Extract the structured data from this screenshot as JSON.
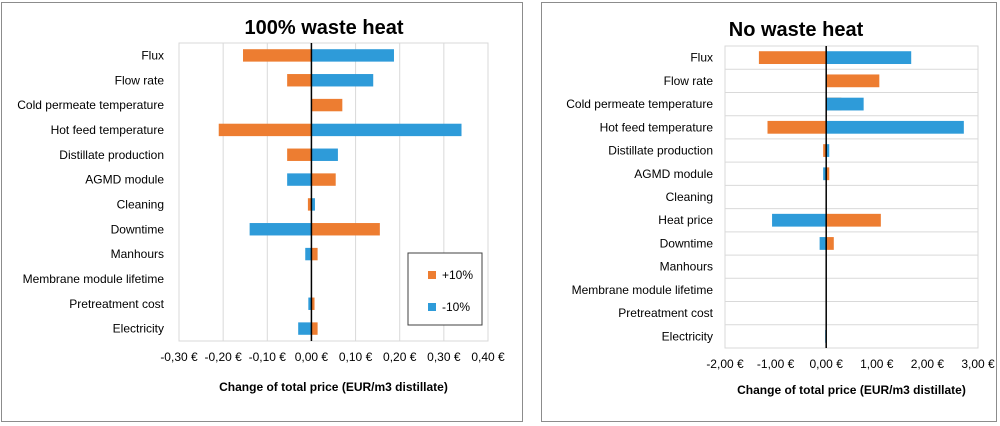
{
  "colors": {
    "plus10": "#ed7d31",
    "minus10": "#2e9bd9",
    "grid": "#d9d9d9",
    "axis": "#000000"
  },
  "chart_data": [
    {
      "type": "bar",
      "orientation": "horizontal",
      "title": "100% waste heat",
      "xlabel": "Change of total price (EUR/m3 distillate)",
      "ylabel": "",
      "xlim": [
        -0.3,
        0.4
      ],
      "x_ticks": [
        -0.3,
        -0.2,
        -0.1,
        0.0,
        0.1,
        0.2,
        0.3,
        0.4
      ],
      "x_tick_labels": [
        "-0,30 €",
        "-0,20 €",
        "-0,10 €",
        "0,00 €",
        "0,10 €",
        "0,20 €",
        "0,30 €",
        "0,40 €"
      ],
      "grid": "vertical",
      "legend_position": "bottom-right",
      "categories": [
        "Flux",
        "Flow rate",
        "Cold permeate temperature",
        "Hot feed temperature",
        "Distillate production",
        "AGMD module",
        "Cleaning",
        "Downtime",
        "Manhours",
        "Membrane module lifetime",
        "Pretreatment cost",
        "Electricity"
      ],
      "series": [
        {
          "name": "+10%",
          "color": "#ed7d31",
          "values": [
            -0.155,
            -0.055,
            0.07,
            -0.21,
            -0.055,
            0.055,
            -0.008,
            0.155,
            0.014,
            0.0,
            0.007,
            0.014
          ]
        },
        {
          "name": "-10%",
          "color": "#2e9bd9",
          "values": [
            0.187,
            0.14,
            0.0,
            0.34,
            0.06,
            -0.055,
            0.008,
            -0.14,
            -0.014,
            0.0,
            -0.007,
            -0.03
          ]
        }
      ]
    },
    {
      "type": "bar",
      "orientation": "horizontal",
      "title": "No waste heat",
      "xlabel": "Change of total price (EUR/m3 distillate)",
      "ylabel": "",
      "xlim": [
        -2.0,
        3.0
      ],
      "x_ticks": [
        -2.0,
        -1.0,
        0.0,
        1.0,
        2.0,
        3.0
      ],
      "x_tick_labels": [
        "-2,00 €",
        "-1,00 €",
        "0,00 €",
        "1,00 €",
        "2,00 €",
        "3,00 €"
      ],
      "grid": "horizontal",
      "legend_position": "none",
      "categories": [
        "Flux",
        "Flow rate",
        "Cold permeate temperature",
        "Hot feed temperature",
        "Distillate production",
        "AGMD module",
        "Cleaning",
        "Heat price",
        "Downtime",
        "Manhours",
        "Membrane module lifetime",
        "Pretreatment cost",
        "Electricity"
      ],
      "series": [
        {
          "name": "+10%",
          "color": "#ed7d31",
          "values": [
            -1.33,
            1.05,
            0.3,
            -1.16,
            -0.06,
            0.06,
            0.0,
            1.08,
            0.15,
            0.0,
            0.0,
            0.0,
            0.0
          ]
        },
        {
          "name": "-10%",
          "color": "#2e9bd9",
          "values": [
            1.68,
            0.0,
            0.74,
            2.72,
            0.06,
            -0.06,
            0.0,
            -1.07,
            -0.13,
            0.0,
            0.0,
            0.0,
            -0.02
          ]
        }
      ]
    }
  ]
}
